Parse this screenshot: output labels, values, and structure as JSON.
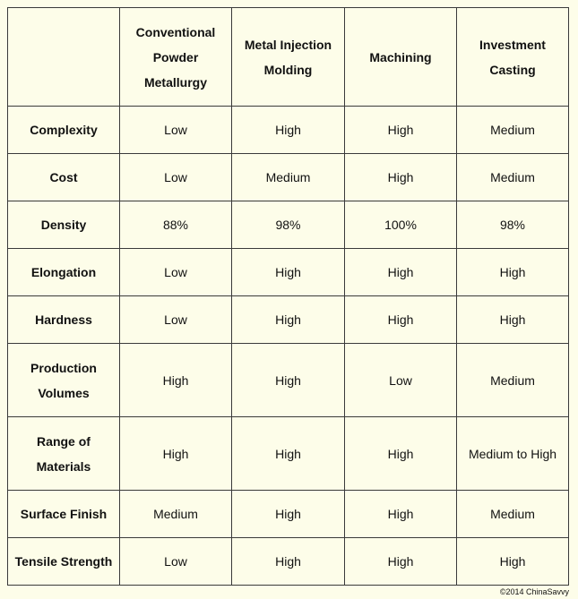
{
  "table": {
    "columns": [
      "",
      "Conventional Powder Metallurgy",
      "Metal Injection Molding",
      "Machining",
      "Investment Casting"
    ],
    "rows": [
      {
        "label": "Complexity",
        "cells": [
          "Low",
          "High",
          "High",
          "Medium"
        ]
      },
      {
        "label": "Cost",
        "cells": [
          "Low",
          "Medium",
          "High",
          "Medium"
        ]
      },
      {
        "label": "Density",
        "cells": [
          "88%",
          "98%",
          "100%",
          "98%"
        ]
      },
      {
        "label": "Elongation",
        "cells": [
          "Low",
          "High",
          "High",
          "High"
        ]
      },
      {
        "label": "Hardness",
        "cells": [
          "Low",
          "High",
          "High",
          "High"
        ]
      },
      {
        "label": "Production Volumes",
        "cells": [
          "High",
          "High",
          "Low",
          "Medium"
        ]
      },
      {
        "label": "Range of Materials",
        "cells": [
          "High",
          "High",
          "High",
          "Medium to High"
        ]
      },
      {
        "label": "Surface Finish",
        "cells": [
          "Medium",
          "High",
          "High",
          "Medium"
        ]
      },
      {
        "label": "Tensile Strength",
        "cells": [
          "Low",
          "High",
          "High",
          "High"
        ]
      }
    ]
  },
  "footer": {
    "copyright": "©2014 ChinaSavvy"
  },
  "colors": {
    "background": "#fdfde9",
    "border": "#3a3a3a",
    "text": "#111111"
  }
}
